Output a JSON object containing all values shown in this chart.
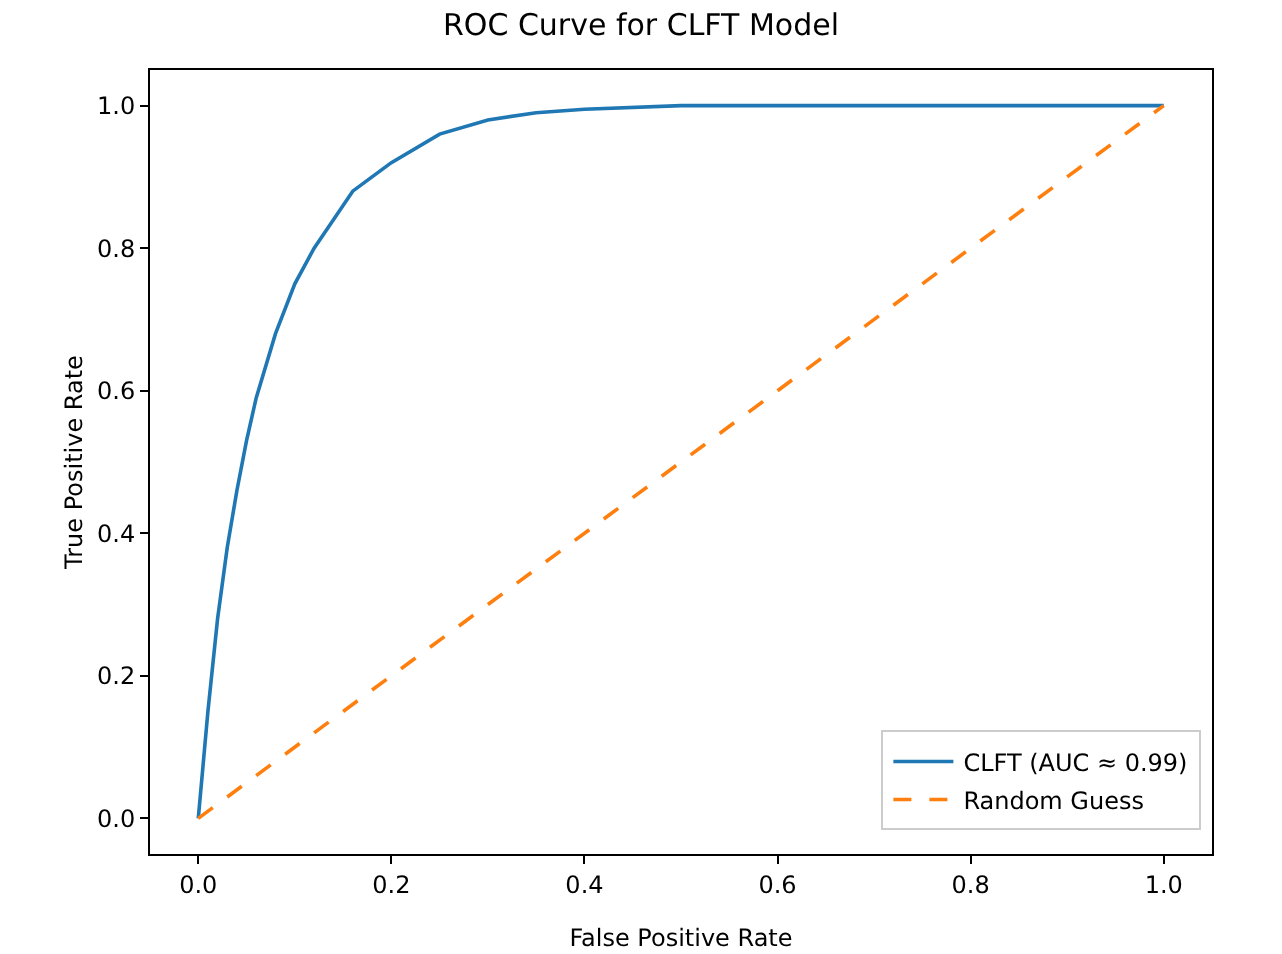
{
  "chart_data": {
    "type": "line",
    "title": "ROC Curve for CLFT Model",
    "xlabel": "False Positive Rate",
    "ylabel": "True Positive Rate",
    "xlim": [
      -0.05,
      1.05
    ],
    "ylim": [
      -0.05,
      1.05
    ],
    "xticks": [
      {
        "value": 0,
        "label": "0.0"
      },
      0.2,
      0.4,
      0.6,
      0.8,
      {
        "value": 1,
        "label": "1.0"
      }
    ],
    "yticks": [
      {
        "value": 0,
        "label": "0.0"
      },
      0.2,
      0.4,
      0.6,
      0.8,
      {
        "value": 1,
        "label": "1.0"
      }
    ],
    "grid": false,
    "legend": "bottom right",
    "marker": "none",
    "series": [
      {
        "name": "CLFT (AUC ≈ 0.99)",
        "color": "#1f77b4",
        "line_style": "solid",
        "x": [
          0,
          0.01,
          0.02,
          0.03,
          0.04,
          0.05,
          0.06,
          0.08,
          0.1,
          0.12,
          0.14,
          0.16,
          0.18,
          0.2,
          0.25,
          0.3,
          0.35,
          0.4,
          0.5,
          0.6,
          0.8,
          1
        ],
        "values": [
          0,
          0.15,
          0.28,
          0.38,
          0.46,
          0.53,
          0.59,
          0.68,
          0.75,
          0.8,
          0.84,
          0.88,
          0.9,
          0.92,
          0.96,
          0.98,
          0.99,
          0.995,
          1,
          1,
          1,
          1
        ]
      },
      {
        "name": "Random Guess",
        "color": "#ff7f0e",
        "line_style": "dashed",
        "x": [
          0,
          1
        ],
        "values": [
          0,
          1
        ]
      }
    ]
  }
}
